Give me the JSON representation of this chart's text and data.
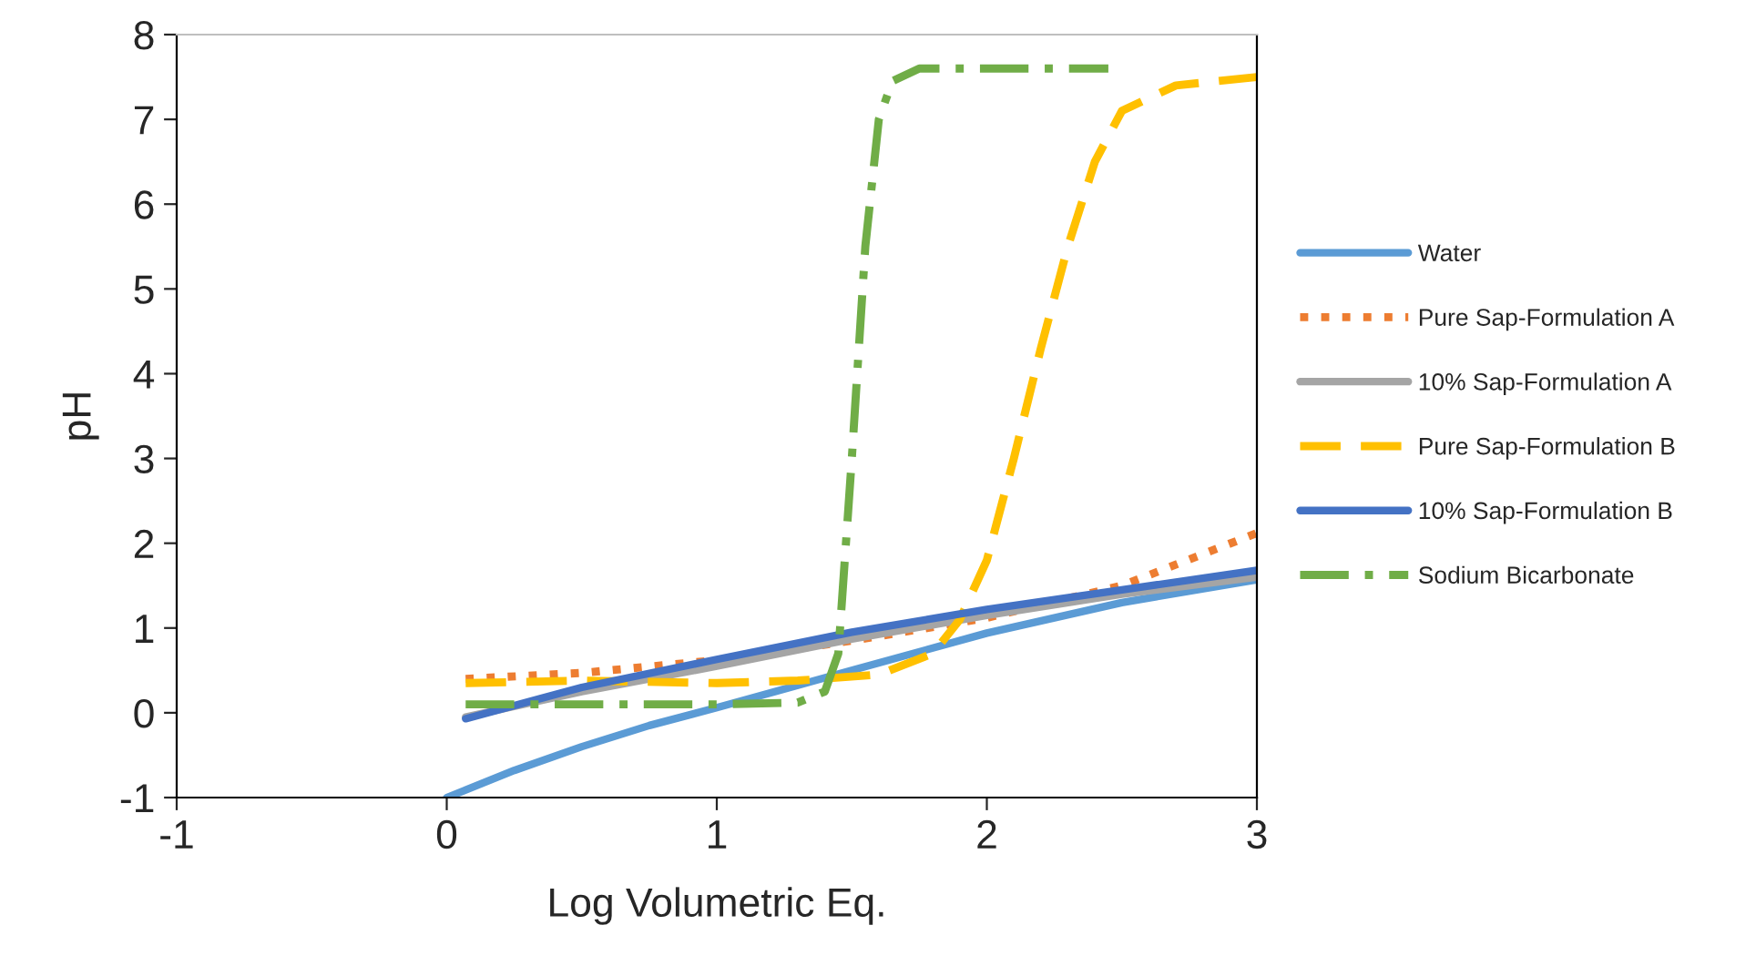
{
  "chart_data": {
    "type": "line",
    "xlabel": "Log Volumetric Eq.",
    "ylabel": "pH",
    "xlim": [
      -1,
      3
    ],
    "xticks": [
      -1,
      0,
      1,
      2,
      3
    ],
    "ylim": [
      -1,
      8
    ],
    "yticks": [
      -1,
      0,
      1,
      2,
      3,
      4,
      5,
      6,
      7,
      8
    ],
    "grid": false,
    "legend": "right",
    "marker": "none",
    "series": [
      {
        "name": "Water",
        "color": "#5b9bd5",
        "line_style": "solid",
        "x": [
          0,
          0.25,
          0.5,
          0.75,
          1,
          1.5,
          2,
          2.5,
          3
        ],
        "values": [
          -1,
          -0.68,
          -0.4,
          -0.15,
          0.06,
          0.5,
          0.94,
          1.3,
          1.57
        ]
      },
      {
        "name": "Pure Sap-Formulation A",
        "color": "#ed7d31",
        "line_style": "dotted",
        "x": [
          0.07,
          0.5,
          1,
          1.5,
          2,
          2.5,
          3
        ],
        "values": [
          0.4,
          0.47,
          0.62,
          0.85,
          1.12,
          1.5,
          2.12
        ]
      },
      {
        "name": "10% Sap-Formulation A",
        "color": "#a5a5a5",
        "line_style": "solid",
        "x": [
          0.07,
          0.5,
          1,
          1.5,
          2,
          2.5,
          3
        ],
        "values": [
          -0.05,
          0.25,
          0.55,
          0.87,
          1.15,
          1.4,
          1.6
        ]
      },
      {
        "name": "Pure Sap-Formulation B",
        "color": "#ffc000",
        "line_style": "dashed",
        "x": [
          0.07,
          0.5,
          1,
          1.3,
          1.6,
          1.8,
          1.9,
          2.0,
          2.1,
          2.2,
          2.3,
          2.4,
          2.5,
          2.7,
          3
        ],
        "values": [
          0.35,
          0.38,
          0.35,
          0.38,
          0.45,
          0.7,
          1.1,
          1.8,
          3.0,
          4.3,
          5.5,
          6.5,
          7.1,
          7.4,
          7.5
        ]
      },
      {
        "name": "10% Sap-Formulation B",
        "color": "#4472c4",
        "line_style": "solid",
        "x": [
          0.07,
          0.5,
          1,
          1.5,
          2,
          2.5,
          3
        ],
        "values": [
          -0.07,
          0.3,
          0.63,
          0.95,
          1.22,
          1.45,
          1.68
        ]
      },
      {
        "name": "Sodium Bicarbonate",
        "color": "#70ad47",
        "line_style": "dashdot",
        "x": [
          0.07,
          0.5,
          1.0,
          1.3,
          1.4,
          1.45,
          1.5,
          1.55,
          1.6,
          1.65,
          1.75,
          2.45
        ],
        "values": [
          0.1,
          0.1,
          0.1,
          0.12,
          0.25,
          0.7,
          3,
          5.5,
          7.0,
          7.45,
          7.6,
          7.6
        ]
      }
    ]
  }
}
